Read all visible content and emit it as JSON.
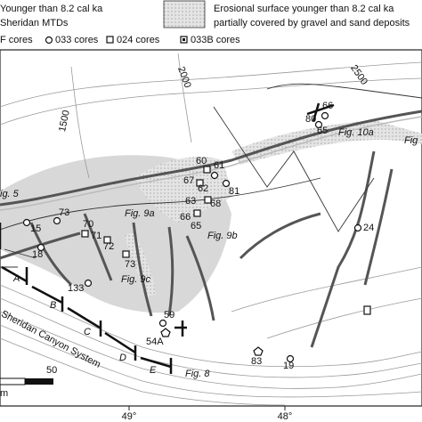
{
  "legend": {
    "mtd": [
      "Younger than 8.2 cal ka",
      "Sheridan MTDs"
    ],
    "erosional": [
      "Erosional surface younger than 8.2 cal ka",
      "partially covered by gravel and sand deposits"
    ],
    "cores": [
      "F cores",
      "033 cores",
      "024 cores",
      "033B cores"
    ]
  },
  "cores": [
    "66",
    "80",
    "65",
    "60",
    "61",
    "67",
    "62",
    "63",
    "81",
    "68",
    "66",
    "65",
    "24",
    "73",
    "15",
    "70",
    "71",
    "72",
    "18",
    "73",
    "133",
    "59",
    "54A",
    "83",
    "19"
  ],
  "figure_labels": [
    "ig. 5",
    "Fig. 9a",
    "Fig. 9b",
    "Fig. 9c",
    "Fig. 10a",
    "Fig",
    "Fig. 8"
  ],
  "contour_labels": [
    "1500",
    "2000",
    "2500"
  ],
  "sections": [
    "A",
    "B",
    "C",
    "D",
    "E"
  ],
  "canyon_label": "Sheridan Canyon System",
  "scale": [
    "50",
    "m"
  ],
  "longitudes": [
    "49°",
    "48°"
  ]
}
